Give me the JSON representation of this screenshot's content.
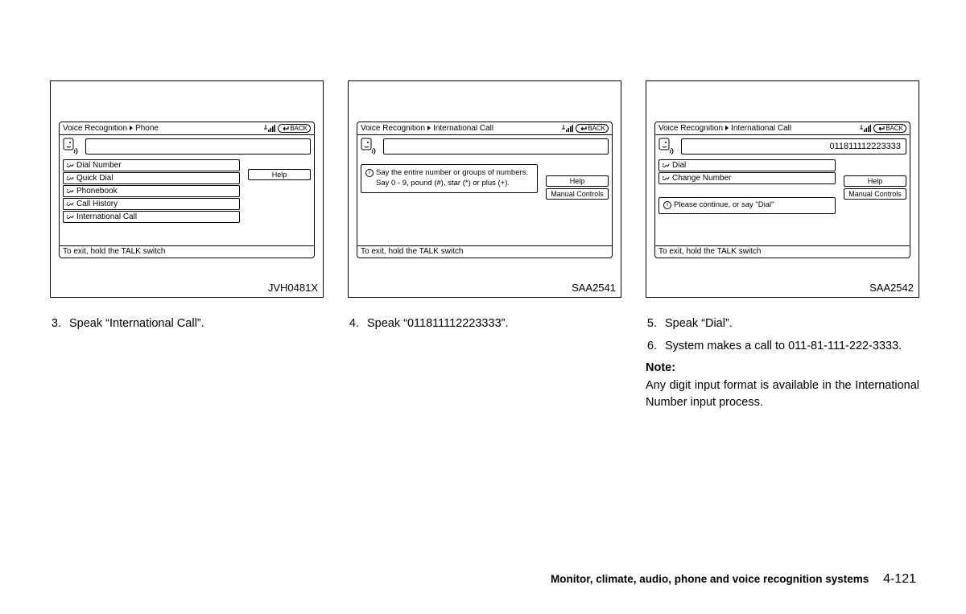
{
  "colors": {
    "fg": "#000000",
    "bg": "#ffffff"
  },
  "panels": [
    {
      "id": "JVH0481X",
      "breadcrumb": [
        "Voice Recognition",
        "Phone"
      ],
      "back": "BACK",
      "input_value": "",
      "menu": [
        "Dial Number",
        "Quick Dial",
        "Phonebook",
        "Call History",
        "International Call"
      ],
      "side": [
        "Help"
      ],
      "side_offset": "14px",
      "hint": null,
      "footer": "To exit, hold the TALK switch"
    },
    {
      "id": "SAA2541",
      "breadcrumb": [
        "Voice Recognition",
        "International Call"
      ],
      "back": "BACK",
      "input_value": "",
      "menu": [],
      "side": [
        "Help",
        "Manual Controls"
      ],
      "side_offset": "22px",
      "hint": "Say the entire number or groups of numbers. Say 0 - 9, pound (#), star (*) or plus (+).",
      "hint_slim": false,
      "footer": "To exit, hold the TALK switch"
    },
    {
      "id": "SAA2542",
      "breadcrumb": [
        "Voice Recognition",
        "International Call"
      ],
      "back": "BACK",
      "input_value": "011811112223333",
      "menu": [
        "Dial",
        "Change Number"
      ],
      "side": [
        "Help",
        "Manual Controls"
      ],
      "side_offset": "22px",
      "hint": "Please continue, or say \"Dial\"",
      "hint_slim": true,
      "footer": "To exit, hold the TALK switch"
    }
  ],
  "steps": [
    [
      {
        "n": "3.",
        "t": "Speak “International Call”."
      }
    ],
    [
      {
        "n": "4.",
        "t": "Speak “011811112223333”."
      }
    ],
    [
      {
        "n": "5.",
        "t": "Speak “Dial”."
      },
      {
        "n": "6.",
        "t": "System makes a call to 011-81-111-222-3333."
      }
    ]
  ],
  "note": {
    "heading": "Note:",
    "body": "Any digit input format is available in the International Number input process."
  },
  "page_footer": {
    "section": "Monitor, climate, audio, phone and voice recognition systems",
    "page": "4-121"
  }
}
